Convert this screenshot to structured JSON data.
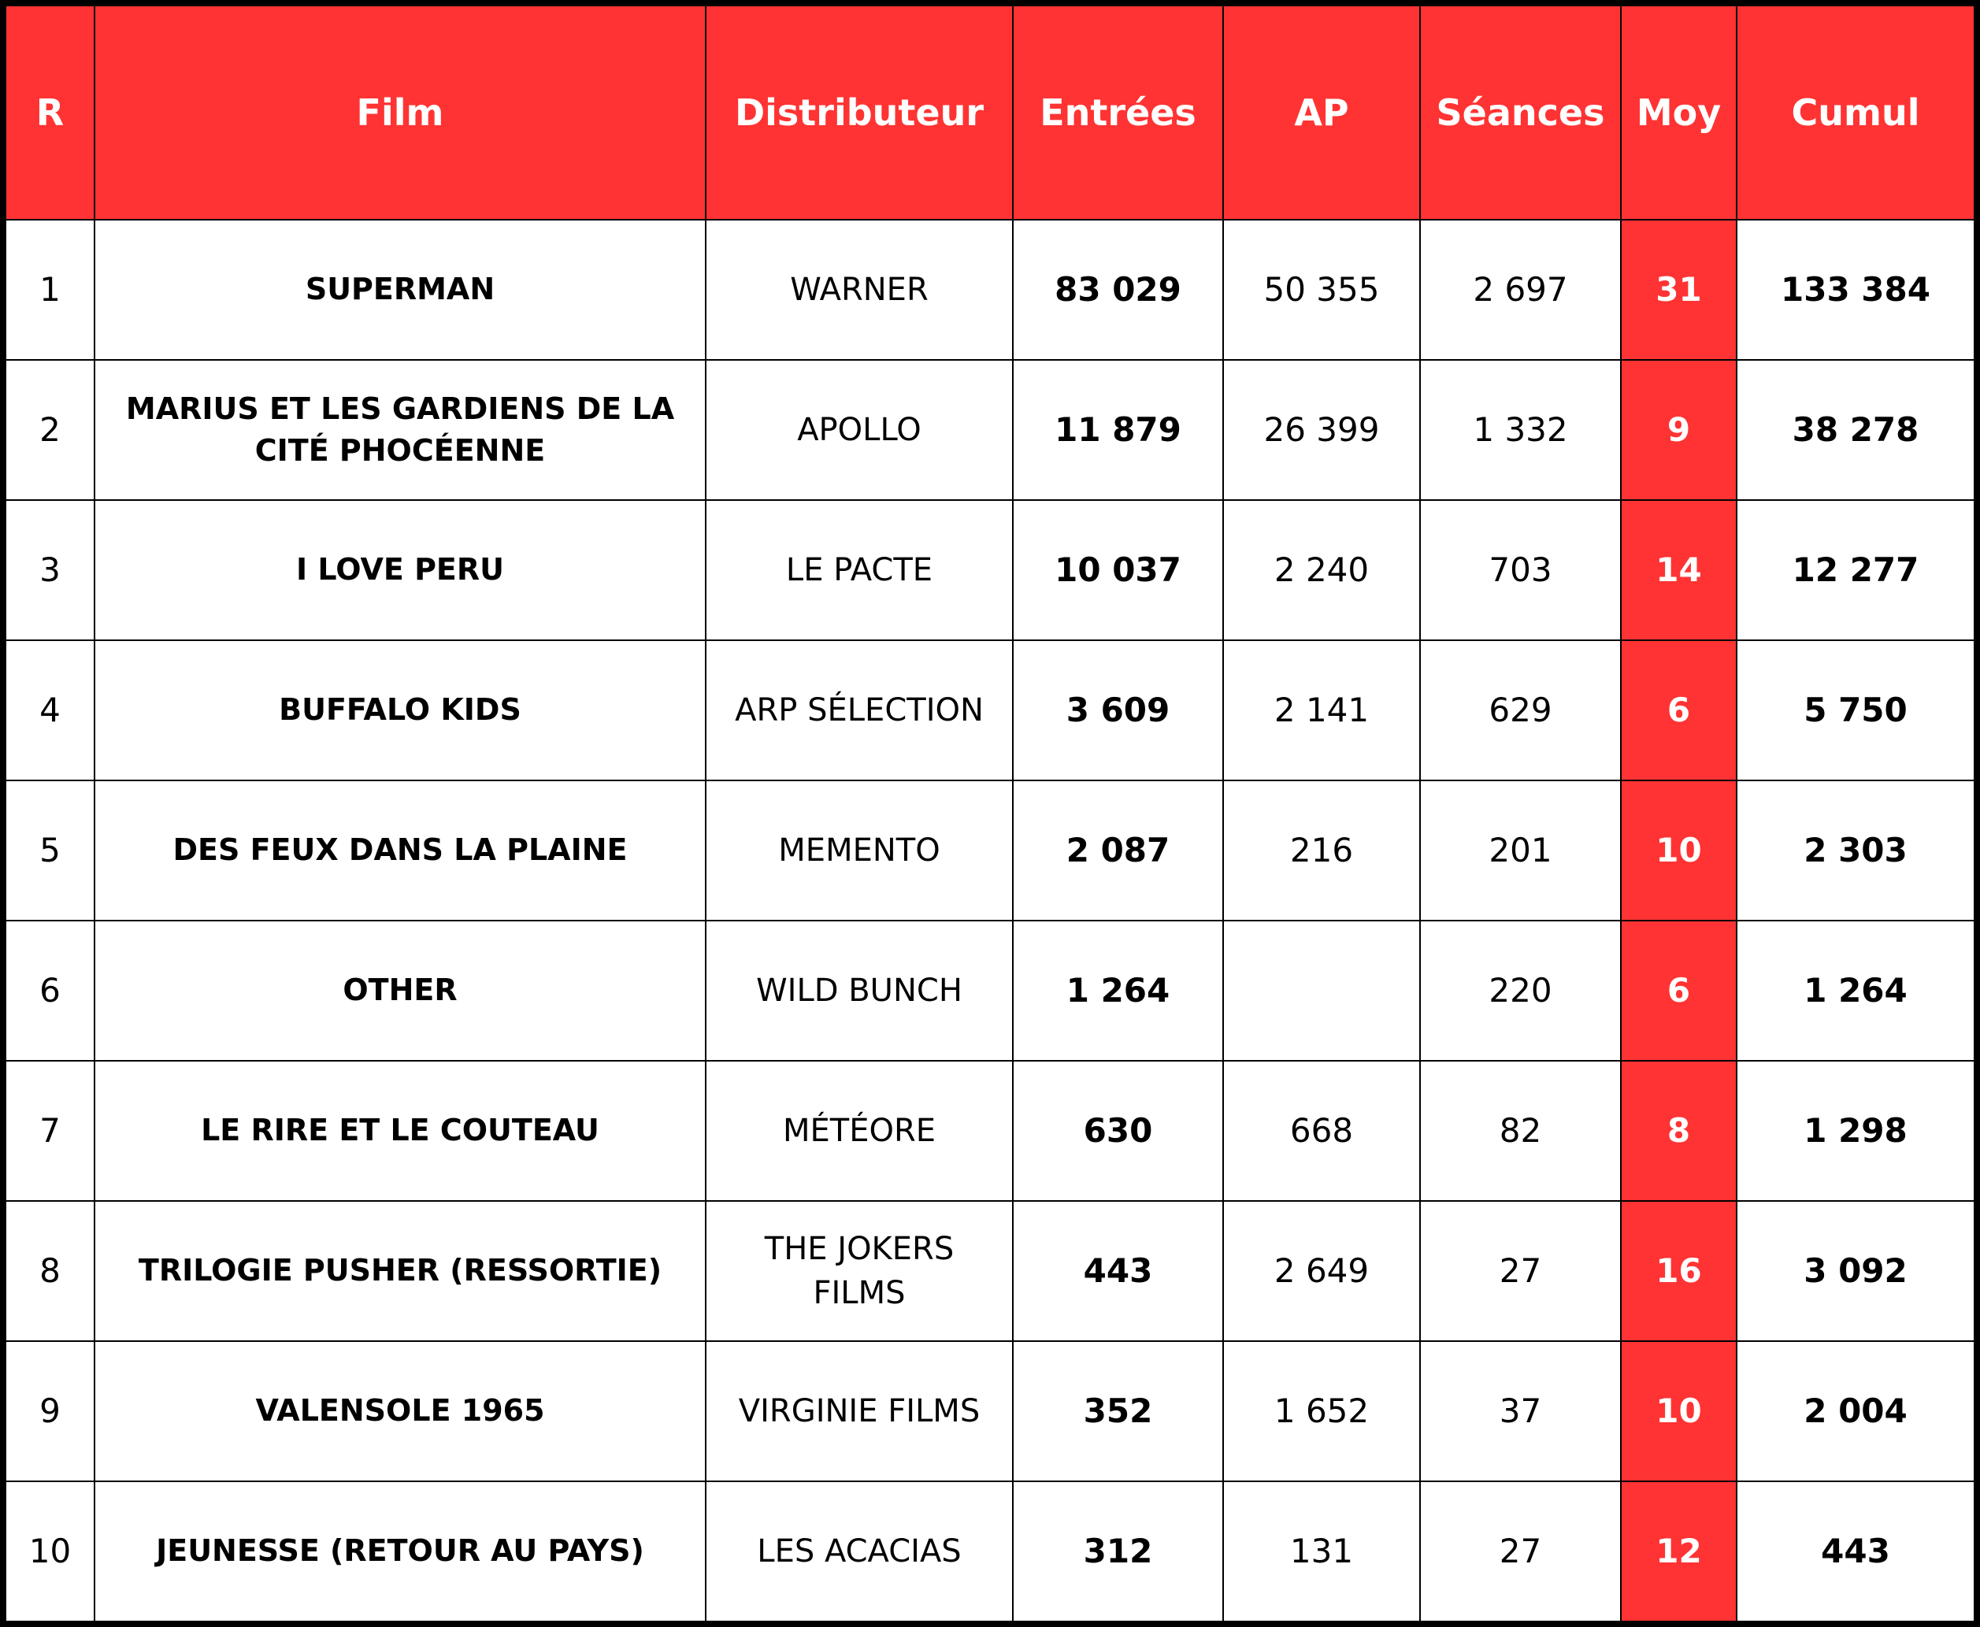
{
  "table": {
    "columns": [
      "R",
      "Film",
      "Distributeur",
      "Entrées",
      "AP",
      "Séances",
      "Moy",
      "Cumul"
    ],
    "rows": [
      [
        "1",
        "SUPERMAN",
        "WARNER",
        "83 029",
        "50 355",
        "2 697",
        "31",
        "133 384"
      ],
      [
        "2",
        "MARIUS ET LES GARDIENS DE LA CITÉ PHOCÉENNE",
        "APOLLO",
        "11 879",
        "26 399",
        "1 332",
        "9",
        "38 278"
      ],
      [
        "3",
        "I LOVE PERU",
        "LE PACTE",
        "10 037",
        "2 240",
        "703",
        "14",
        "12 277"
      ],
      [
        "4",
        "BUFFALO KIDS",
        "ARP SÉLECTION",
        "3 609",
        "2 141",
        "629",
        "6",
        "5 750"
      ],
      [
        "5",
        "DES FEUX DANS LA PLAINE",
        "MEMENTO",
        "2 087",
        "216",
        "201",
        "10",
        "2 303"
      ],
      [
        "6",
        "OTHER",
        "WILD BUNCH",
        "1 264",
        null,
        "220",
        "6",
        "1 264"
      ],
      [
        "7",
        "LE RIRE ET LE COUTEAU",
        "MÉTÉORE",
        "630",
        "668",
        "82",
        "8",
        "1 298"
      ],
      [
        "8",
        "TRILOGIE PUSHER (RESSORTIE)",
        "THE JOKERS FILMS",
        "443",
        "2 649",
        "27",
        "16",
        "3 092"
      ],
      [
        "9",
        "VALENSOLE 1965",
        "VIRGINIE FILMS",
        "352",
        "1 652",
        "37",
        "10",
        "2 004"
      ],
      [
        "10",
        "JEUNESSE (RETOUR AU PAYS)",
        "LES ACACIAS",
        "312",
        "131",
        "27",
        "12",
        "443"
      ]
    ]
  }
}
